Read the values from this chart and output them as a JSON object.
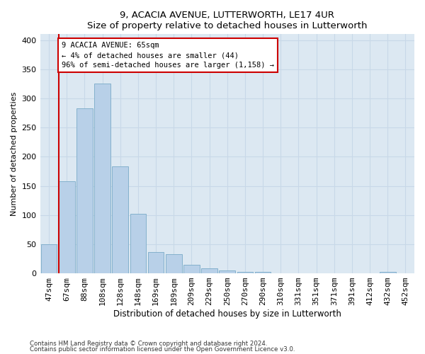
{
  "title": "9, ACACIA AVENUE, LUTTERWORTH, LE17 4UR",
  "subtitle": "Size of property relative to detached houses in Lutterworth",
  "xlabel": "Distribution of detached houses by size in Lutterworth",
  "ylabel": "Number of detached properties",
  "categories": [
    "47sqm",
    "67sqm",
    "88sqm",
    "108sqm",
    "128sqm",
    "148sqm",
    "169sqm",
    "189sqm",
    "209sqm",
    "229sqm",
    "250sqm",
    "270sqm",
    "290sqm",
    "310sqm",
    "331sqm",
    "351sqm",
    "371sqm",
    "391sqm",
    "412sqm",
    "432sqm",
    "452sqm"
  ],
  "values": [
    50,
    158,
    283,
    325,
    183,
    102,
    37,
    33,
    15,
    8,
    5,
    3,
    3,
    0,
    0,
    0,
    0,
    0,
    0,
    3,
    0
  ],
  "bar_color": "#b8d0e8",
  "bar_edge_color": "#7aaac8",
  "highlight_line_color": "#cc0000",
  "highlight_bar_index": 1,
  "annotation_line1": "9 ACACIA AVENUE: 65sqm",
  "annotation_line2": "← 4% of detached houses are smaller (44)",
  "annotation_line3": "96% of semi-detached houses are larger (1,158) →",
  "annotation_box_color": "white",
  "annotation_box_edge_color": "#cc0000",
  "ylim": [
    0,
    410
  ],
  "yticks": [
    0,
    50,
    100,
    150,
    200,
    250,
    300,
    350,
    400
  ],
  "grid_color": "#c8d8e8",
  "bg_color": "#dce8f2",
  "footer1": "Contains HM Land Registry data © Crown copyright and database right 2024.",
  "footer2": "Contains public sector information licensed under the Open Government Licence v3.0."
}
